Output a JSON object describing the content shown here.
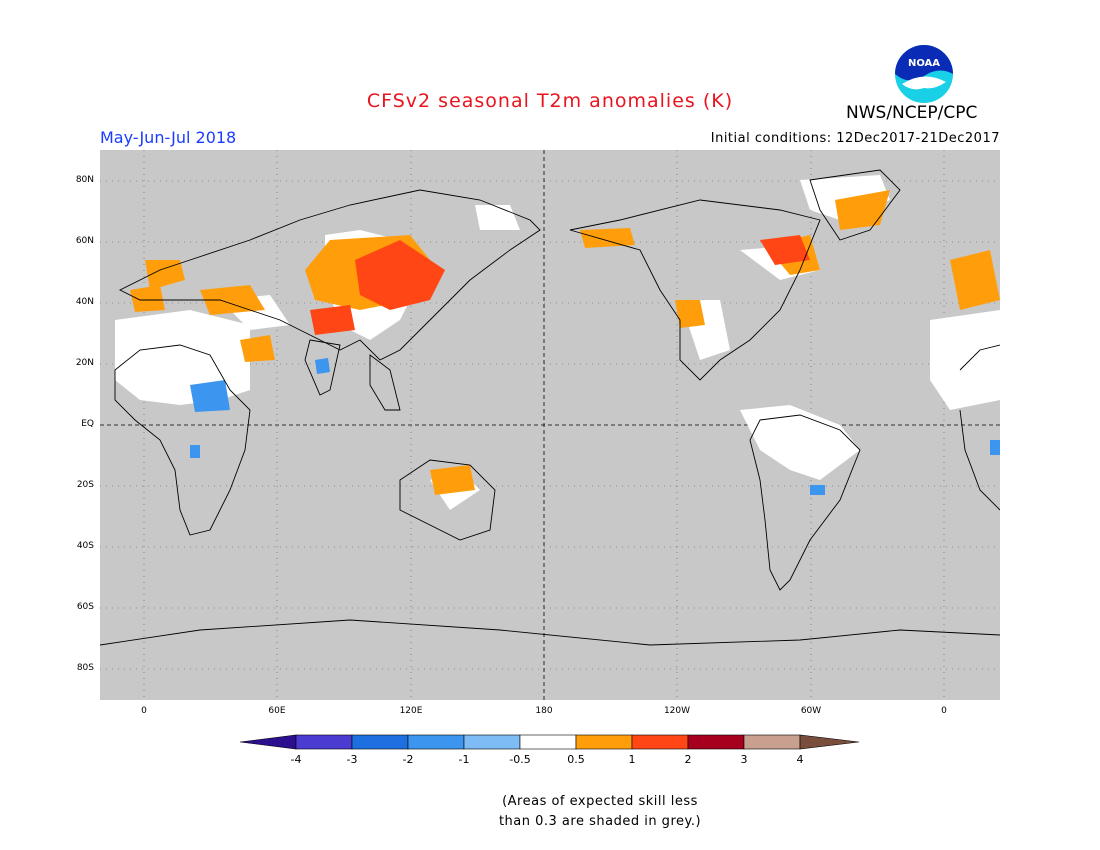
{
  "header": {
    "title": "CFSv2 seasonal T2m anomalies (K)",
    "period": "May-Jun-Jul 2018",
    "initial_conditions": "Initial conditions: 12Dec2017-21Dec2017",
    "agency": "NWS/NCEP/CPC",
    "logo_text": "NOAA"
  },
  "map": {
    "lat_labels": [
      "80N",
      "60N",
      "40N",
      "20N",
      "EQ",
      "20S",
      "40S",
      "60S",
      "80S"
    ],
    "lon_labels": [
      "0",
      "60E",
      "120E",
      "180",
      "120W",
      "60W",
      "0"
    ],
    "background_color": "#c8c8c8"
  },
  "legend": {
    "labels": [
      "-4",
      "-3",
      "-2",
      "-1",
      "-0.5",
      "0.5",
      "1",
      "2",
      "3",
      "4"
    ],
    "colors": [
      "#2c0f8f",
      "#4a3bd1",
      "#1e6fe0",
      "#3c95ee",
      "#7dbcf5",
      "#ffffff",
      "#ff9e0a",
      "#ff4614",
      "#a6001e",
      "#c9a090",
      "#7a4e3c"
    ]
  },
  "footer": {
    "note_line1": "(Areas of expected skill less",
    "note_line2": "than 0.3 are shaded in grey.)"
  }
}
